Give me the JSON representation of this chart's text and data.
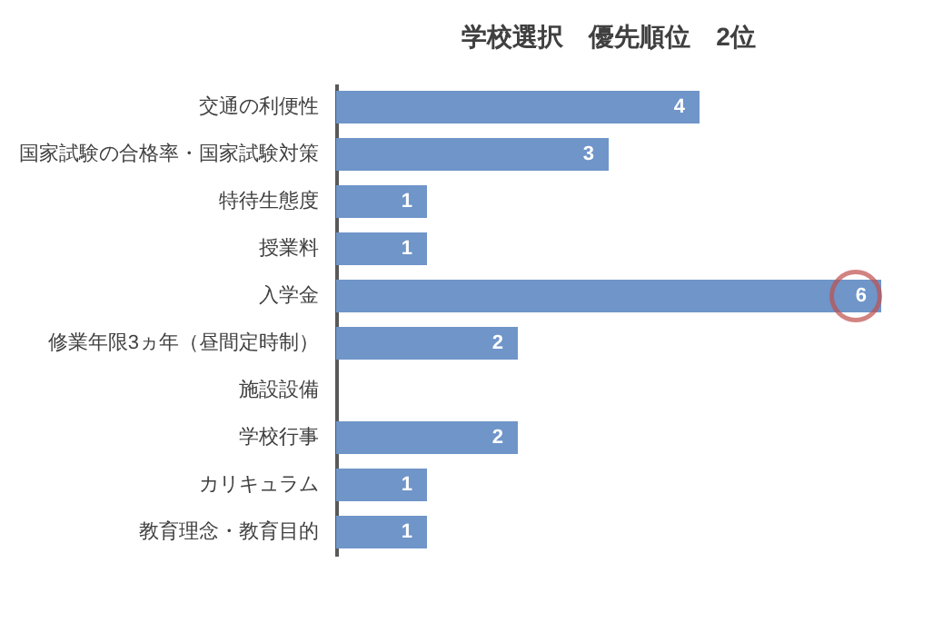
{
  "chart_data": {
    "type": "bar",
    "orientation": "horizontal",
    "title": "学校選択　優先順位　2位",
    "categories": [
      "交通の利便性",
      "国家試験の合格率・国家試験対策",
      "特待生態度",
      "授業料",
      "入学金",
      "修業年限3ヵ年（昼間定時制）",
      "施設設備",
      "学校行事",
      "カリキュラム",
      "教育理念・教育目的"
    ],
    "values": [
      4,
      3,
      1,
      1,
      6,
      2,
      null,
      2,
      1,
      1
    ],
    "color": "#6f95c9",
    "data_labels": true,
    "grid": false
  }
}
